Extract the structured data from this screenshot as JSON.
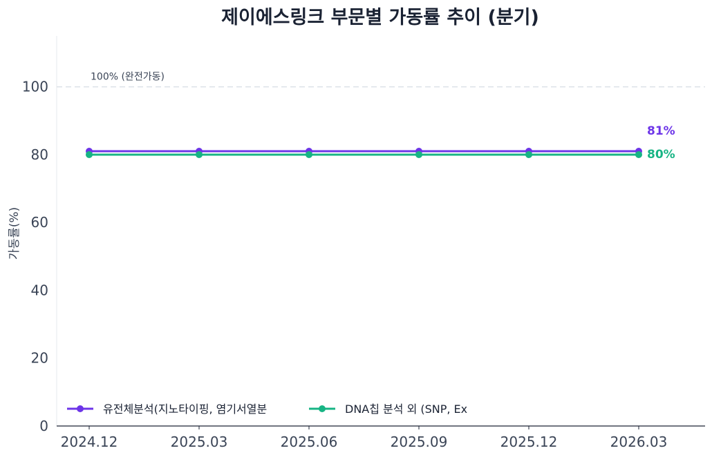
{
  "chart_data": {
    "type": "line",
    "title": "제이에스링크 부문별 가동률 추이 (분기)",
    "xlabel": "",
    "ylabel": "가동률(%)",
    "categories": [
      "2024.12",
      "2025.03",
      "2025.06",
      "2025.09",
      "2025.12",
      "2026.03"
    ],
    "ylim": [
      0,
      115
    ],
    "yticks": [
      "0",
      "20",
      "40",
      "60",
      "80",
      "100"
    ],
    "reference_line": {
      "value": 100,
      "label": "100% (완전가동)",
      "color": "#dde2e8"
    },
    "series": [
      {
        "name": "유전체분석(지노타이핑, 염기서열분",
        "values": [
          81,
          81,
          81,
          81,
          81,
          81
        ],
        "color": "#6d35e8",
        "end_label": "81%"
      },
      {
        "name": "DNA칩 분석 외 (SNP, Ex",
        "values": [
          80,
          80,
          80,
          80,
          80,
          80
        ],
        "color": "#17b484",
        "end_label": "80%"
      }
    ],
    "legend_position": "lower-left",
    "grid": false
  }
}
